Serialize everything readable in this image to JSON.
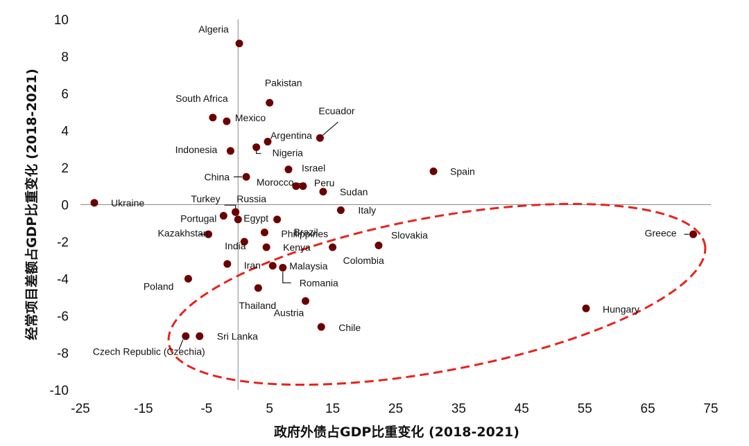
{
  "chart_data": {
    "type": "scatter",
    "xlabel": "政府外债占GDP比重变化 (2018-2021)",
    "ylabel": "经常项目差额占GDP比重变化 (2018-2021)",
    "xlim": [
      -25,
      75
    ],
    "ylim": [
      -10,
      10
    ],
    "xticks": [
      -25,
      -15,
      -5,
      5,
      15,
      25,
      35,
      45,
      55,
      65,
      75
    ],
    "yticks": [
      10,
      8,
      6,
      4,
      2,
      0,
      -2,
      -4,
      -6,
      -8,
      -10
    ],
    "marker_color": "#6B0000",
    "highlight_color": "#E8221B",
    "highlight": "dashed ellipse around the lower-right group of countries",
    "points": [
      {
        "label": "Algeria",
        "x": 0.2,
        "y": 8.7
      },
      {
        "label": "Pakistan",
        "x": 5.0,
        "y": 5.5
      },
      {
        "label": "South Africa",
        "x": -4.0,
        "y": 4.7
      },
      {
        "label": "Mexico",
        "x": -1.8,
        "y": 4.5
      },
      {
        "label": "Ecuador",
        "x": 13.0,
        "y": 3.6
      },
      {
        "label": "Argentina",
        "x": 4.7,
        "y": 3.4
      },
      {
        "label": "Indonesia",
        "x": -1.2,
        "y": 2.9
      },
      {
        "label": "Nigeria",
        "x": 2.9,
        "y": 3.1
      },
      {
        "label": "Israel",
        "x": 8.0,
        "y": 1.9
      },
      {
        "label": "Spain",
        "x": 31.0,
        "y": 1.8
      },
      {
        "label": "China",
        "x": 1.3,
        "y": 1.5
      },
      {
        "label": "Morocco",
        "x": 9.2,
        "y": 1.0
      },
      {
        "label": "Peru",
        "x": 10.3,
        "y": 1.0
      },
      {
        "label": "Sudan",
        "x": 13.5,
        "y": 0.7
      },
      {
        "label": "Ukraine",
        "x": -22.8,
        "y": 0.1
      },
      {
        "label": "Turkey",
        "x": -0.4,
        "y": -0.4
      },
      {
        "label": "Russia",
        "x": -0.4,
        "y": -0.4
      },
      {
        "label": "Italy",
        "x": 16.3,
        "y": -0.3
      },
      {
        "label": "Portugal",
        "x": -2.3,
        "y": -0.6
      },
      {
        "label": "Egypt",
        "x": 0.0,
        "y": -0.8
      },
      {
        "label": "Brazil",
        "x": 6.2,
        "y": -0.8
      },
      {
        "label": "Kazakhstan",
        "x": -4.7,
        "y": -1.6
      },
      {
        "label": "Philippines",
        "x": 4.2,
        "y": -1.5
      },
      {
        "label": "Greece",
        "x": 72.2,
        "y": -1.6
      },
      {
        "label": "India",
        "x": 1.0,
        "y": -2.0
      },
      {
        "label": "Kenya",
        "x": 4.5,
        "y": -2.3
      },
      {
        "label": "Colombia",
        "x": 15.0,
        "y": -2.3
      },
      {
        "label": "Slovakia",
        "x": 22.3,
        "y": -2.2
      },
      {
        "label": "Iran",
        "x": -1.7,
        "y": -3.2
      },
      {
        "label": "Malaysia",
        "x": 5.5,
        "y": -3.3
      },
      {
        "label": "Romania",
        "x": 7.1,
        "y": -3.4
      },
      {
        "label": "Poland",
        "x": -7.9,
        "y": -4.0
      },
      {
        "label": "Thailand",
        "x": 3.2,
        "y": -4.5
      },
      {
        "label": "Austria",
        "x": 10.7,
        "y": -5.2
      },
      {
        "label": "Hungary",
        "x": 55.2,
        "y": -5.6
      },
      {
        "label": "Chile",
        "x": 13.2,
        "y": -6.6
      },
      {
        "label": "Czech Republic (Czechia)",
        "x": -8.3,
        "y": -7.1
      },
      {
        "label": "Sri Lanka",
        "x": -6.1,
        "y": -7.1
      }
    ]
  }
}
